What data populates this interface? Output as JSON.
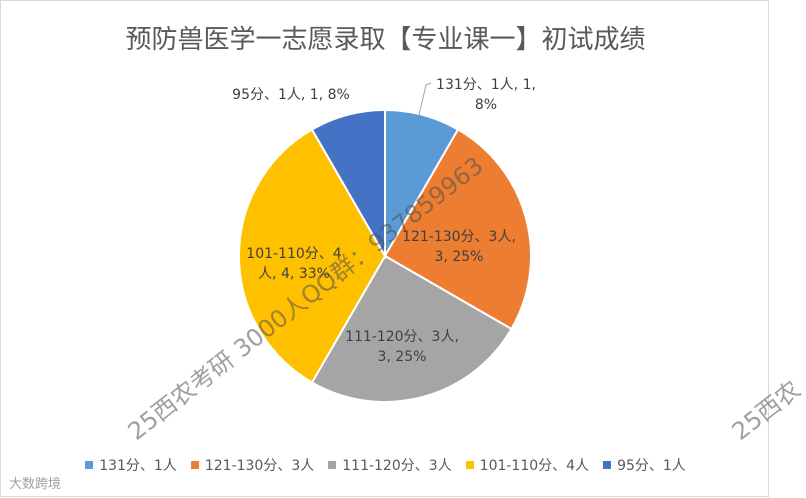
{
  "chart_data": {
    "type": "pie",
    "title": "预防兽医学一志愿录取【专业课一】初试成绩",
    "categories": [
      "131分、1人",
      "121-130分、3人",
      "111-120分、3人",
      "101-110分、4人",
      "95分、1人"
    ],
    "values": [
      1,
      3,
      3,
      4,
      1
    ],
    "value_labels": [
      "131分、1人, 1, 8%",
      "121-130分、3人, 3, 25%",
      "111-120分、3人, 3, 25%",
      "101-110分、4人, 4, 33%",
      "95分、1人, 1, 8%"
    ],
    "colors": [
      "#5b9bd5",
      "#ed7d31",
      "#a5a5a5",
      "#ffc000",
      "#4472c4"
    ],
    "legend": "bottom",
    "watermarks": [
      "25西农考研 3000人QQ群：937859963",
      "25西农",
      "大数跨境"
    ]
  }
}
